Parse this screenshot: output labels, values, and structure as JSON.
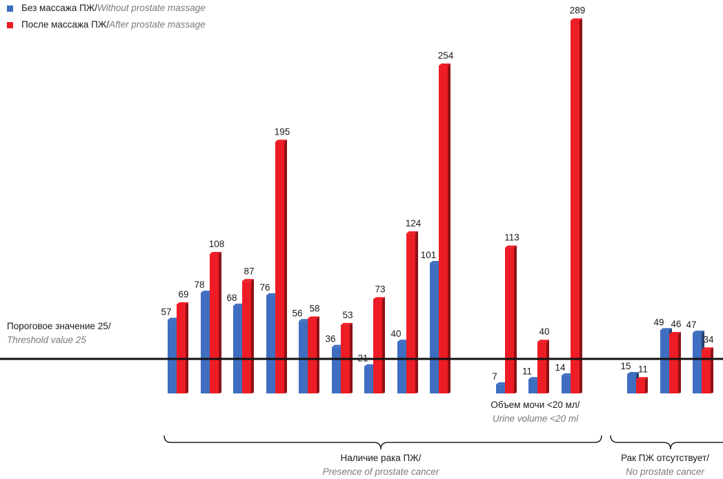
{
  "colors": {
    "without": "#3f6ec0",
    "with": "#ee1c25",
    "axis": "#111111",
    "text": "#1a1a1a",
    "italic": "#7a7a7a"
  },
  "legend": {
    "without_ru": "Без массажа ПЖ/",
    "without_en": "Without prostate massage",
    "with_ru": "После массажа ПЖ/",
    "with_en": "After prostate massage"
  },
  "threshold": {
    "label_ru": "Пороговое значение 25/",
    "label_en": "Threshold value 25"
  },
  "annotations": {
    "urine_ru": "Объем мочи <20 мл/",
    "urine_en": "Urine volume <20 ml",
    "cancer_ru": "Наличие рака ПЖ/",
    "cancer_en": "Presence of prostate cancer",
    "nocancer_ru": "Рак ПЖ отсутствует/",
    "nocancer_en": "No prostate cancer"
  },
  "chart_data": {
    "type": "bar",
    "threshold": 25,
    "series": [
      {
        "name": "Без массажа ПЖ/Without prostate massage",
        "values": [
          57,
          78,
          68,
          76,
          56,
          36,
          21,
          40,
          101,
          7,
          11,
          14,
          15,
          49,
          47
        ]
      },
      {
        "name": "После массажа ПЖ/After prostate massage",
        "values": [
          69,
          108,
          87,
          195,
          58,
          53,
          73,
          124,
          254,
          113,
          40,
          289,
          11,
          46,
          34
        ]
      }
    ],
    "groups": [
      {
        "label": "Наличие рака ПЖ/Presence of prostate cancer",
        "from": 0,
        "to": 11
      },
      {
        "label": "Рак ПЖ отсутствует/No prostate cancer",
        "from": 12,
        "to": 14
      }
    ]
  }
}
